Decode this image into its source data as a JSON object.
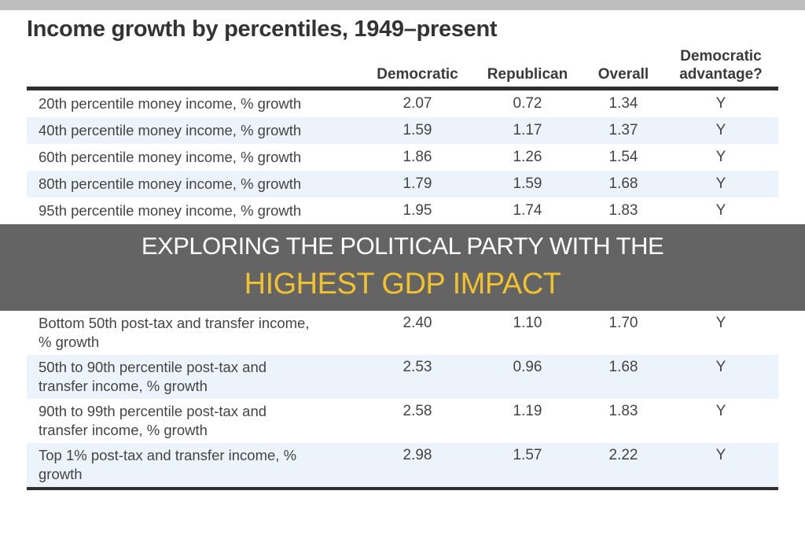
{
  "chart_data": {
    "type": "table",
    "title": "Income growth by percentiles, 1949–present",
    "columns": [
      "Democratic",
      "Republican",
      "Overall",
      "Democratic advantage?"
    ],
    "rows": [
      {
        "label": "20th percentile money income, % growth",
        "values": [
          "2.07",
          "0.72",
          "1.34",
          "Y"
        ]
      },
      {
        "label": "40th percentile money income, % growth",
        "values": [
          "1.59",
          "1.17",
          "1.37",
          "Y"
        ]
      },
      {
        "label": "60th percentile money income, % growth",
        "values": [
          "1.86",
          "1.26",
          "1.54",
          "Y"
        ]
      },
      {
        "label": "80th percentile money income, % growth",
        "values": [
          "1.79",
          "1.59",
          "1.68",
          "Y"
        ]
      },
      {
        "label": "95th percentile money income, % growth",
        "values": [
          "1.95",
          "1.74",
          "1.83",
          "Y"
        ]
      },
      {
        "label": "Bottom 50th post-tax and transfer income, % growth",
        "values": [
          "2.40",
          "1.10",
          "1.70",
          "Y"
        ]
      },
      {
        "label": "50th to 90th percentile post-tax and transfer income, % growth",
        "values": [
          "2.53",
          "0.96",
          "1.68",
          "Y"
        ]
      },
      {
        "label": "90th to 99th percentile post-tax and transfer income, % growth",
        "values": [
          "2.58",
          "1.19",
          "1.83",
          "Y"
        ]
      },
      {
        "label": "Top 1% post-tax and transfer income, % growth",
        "values": [
          "2.98",
          "1.57",
          "2.22",
          "Y"
        ]
      }
    ]
  },
  "overlay": {
    "line1": "EXPLORING THE POLITICAL PARTY WITH THE",
    "line2": "HIGHEST GDP IMPACT",
    "accent_color": "#f2c12e"
  }
}
